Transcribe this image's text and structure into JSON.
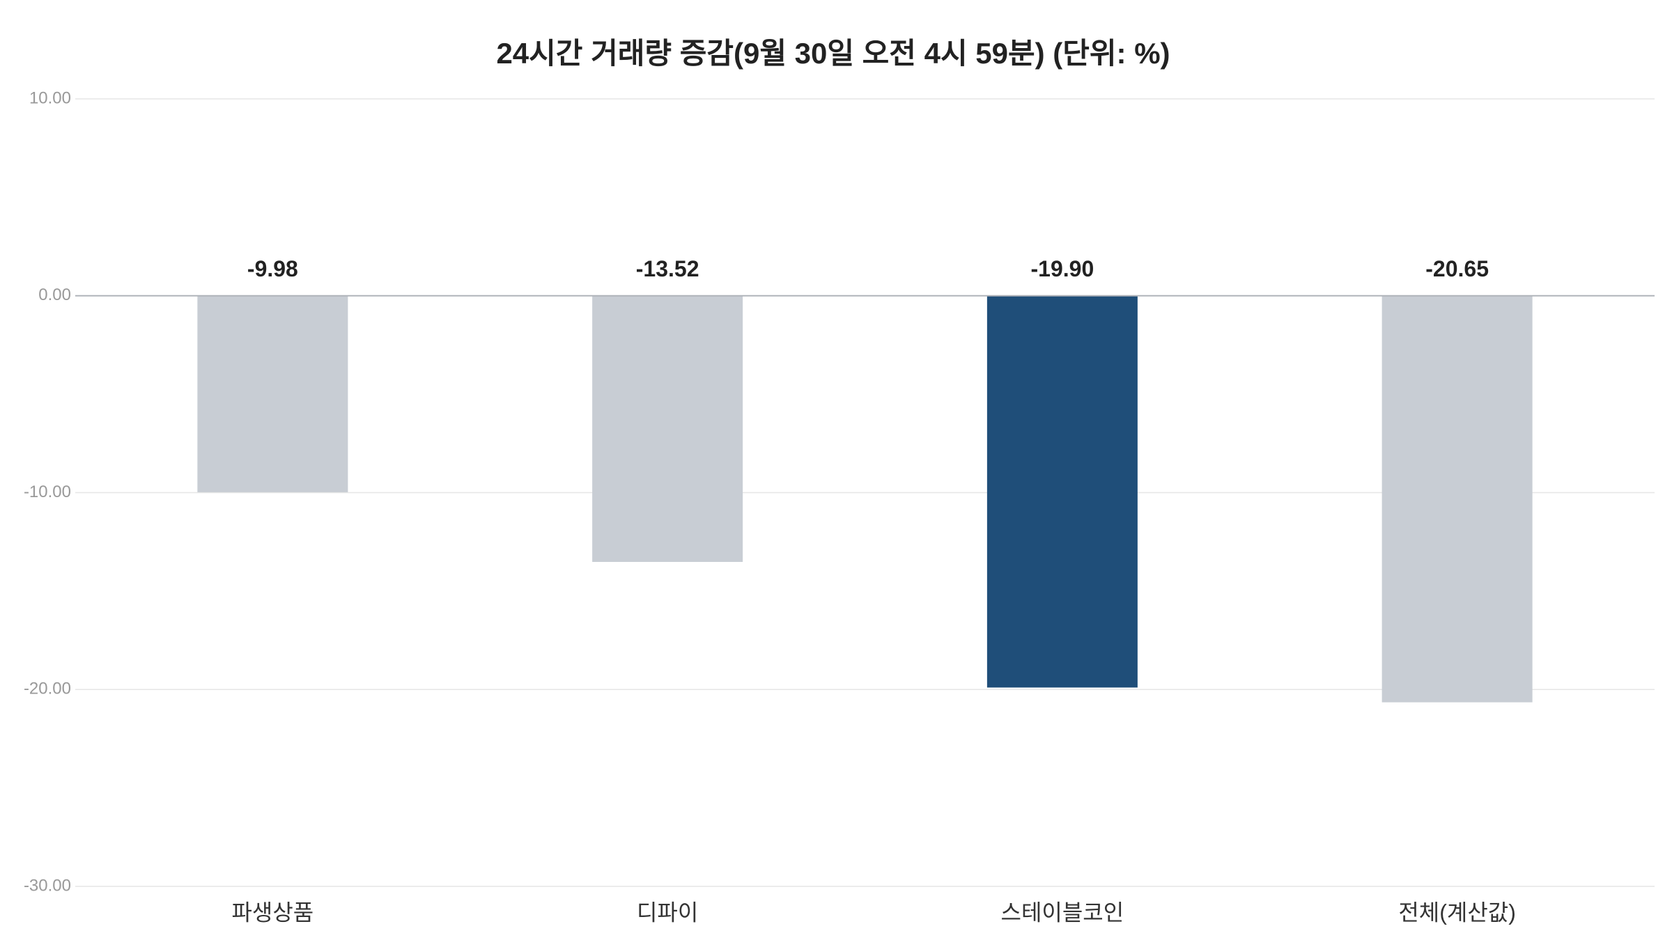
{
  "chart_data": {
    "type": "bar",
    "title": "24시간 거래량 증감(9월 30일 오전 4시 59분) (단위: %)",
    "categories": [
      "파생상품",
      "디파이",
      "스테이블코인",
      "전체(계산값)"
    ],
    "values": [
      -9.98,
      -13.52,
      -19.9,
      -20.65
    ],
    "value_labels": [
      "-9.98",
      "-13.52",
      "-19.90",
      "-20.65"
    ],
    "colors": [
      "#c8cdd4",
      "#c8cdd4",
      "#1f4e79",
      "#c8cdd4"
    ],
    "ylim": [
      -30,
      10
    ],
    "yticks": [
      {
        "value": -30,
        "label": "-30.00"
      },
      {
        "value": -20,
        "label": "-20.00"
      },
      {
        "value": -10,
        "label": "-10.00"
      },
      {
        "value": 0,
        "label": "0.00"
      },
      {
        "value": 10,
        "label": "10.00"
      }
    ],
    "grid": true
  }
}
